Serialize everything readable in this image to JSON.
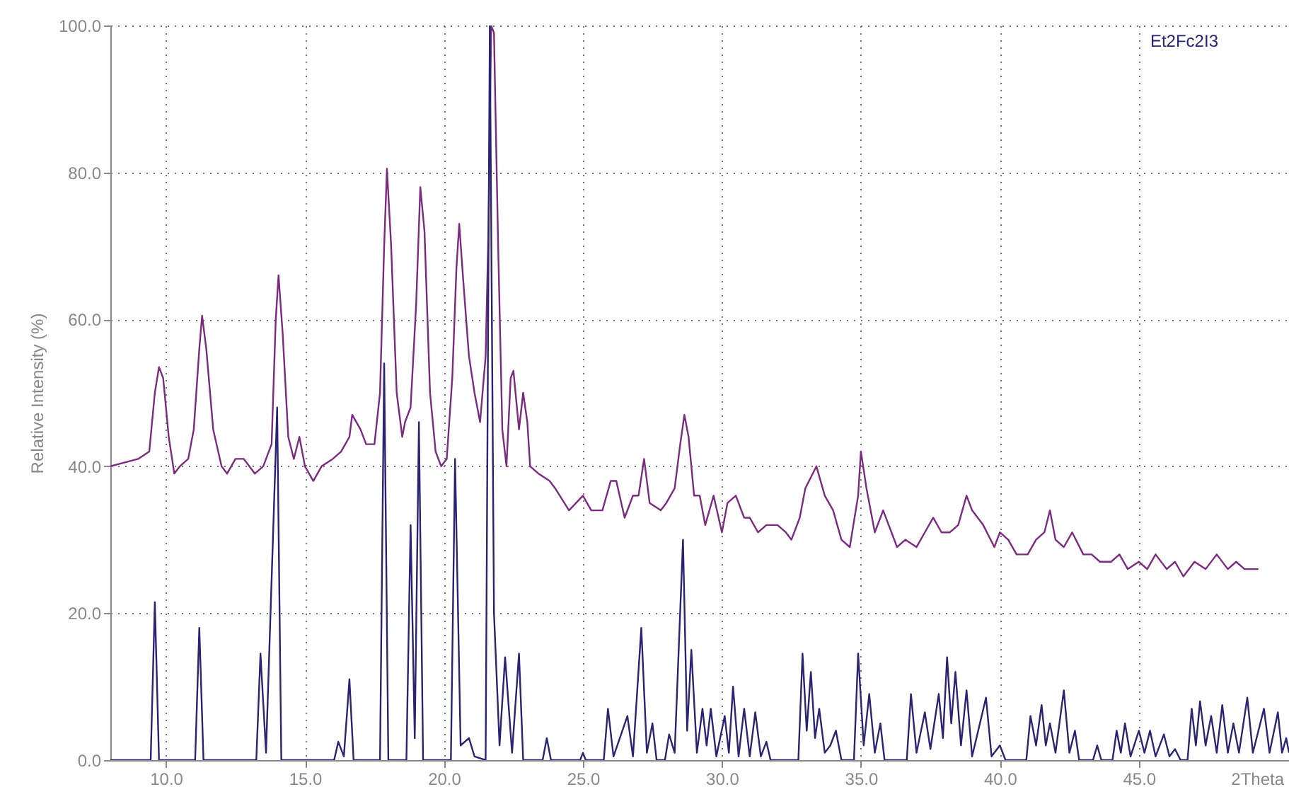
{
  "chart_data": {
    "type": "line",
    "xlabel": "2Theta",
    "ylabel": "Relative Intensity (%)",
    "annotations": [
      "Et2Fc2I3"
    ],
    "xlim": [
      8,
      50.4
    ],
    "ylim": [
      0,
      100
    ],
    "xticks": [
      {
        "value": 10,
        "label": "10.0"
      },
      {
        "value": 15,
        "label": "15.0"
      },
      {
        "value": 20,
        "label": "20.0"
      },
      {
        "value": 25,
        "label": "25.0"
      },
      {
        "value": 30,
        "label": "30.0"
      },
      {
        "value": 35,
        "label": "35.0"
      },
      {
        "value": 40,
        "label": "40.0"
      },
      {
        "value": 45,
        "label": "45.0"
      }
    ],
    "yticks": [
      {
        "value": 0,
        "label": "0.0"
      },
      {
        "value": 20,
        "label": "20.0"
      },
      {
        "value": 40,
        "label": "40.0"
      },
      {
        "value": 60,
        "label": "60.0"
      },
      {
        "value": 80,
        "label": "80.0"
      },
      {
        "value": 100,
        "label": "100.0"
      }
    ],
    "grid": true,
    "series": [
      {
        "color": "#7b2b80",
        "x": [
          8.0,
          8.5,
          9.0,
          9.4,
          9.6,
          9.75,
          9.9,
          10.1,
          10.3,
          10.5,
          10.8,
          11.0,
          11.2,
          11.3,
          11.45,
          11.7,
          12.0,
          12.2,
          12.5,
          12.8,
          13.2,
          13.5,
          13.8,
          13.95,
          14.05,
          14.2,
          14.4,
          14.6,
          14.8,
          15.0,
          15.3,
          15.6,
          16.0,
          16.3,
          16.6,
          16.7,
          17.0,
          17.2,
          17.5,
          17.7,
          17.85,
          17.95,
          18.1,
          18.3,
          18.5,
          18.6,
          18.8,
          19.0,
          19.15,
          19.3,
          19.5,
          19.7,
          19.9,
          20.1,
          20.3,
          20.45,
          20.55,
          20.7,
          20.9,
          21.1,
          21.3,
          21.5,
          21.6,
          21.7,
          21.8,
          21.95,
          22.1,
          22.25,
          22.4,
          22.5,
          22.7,
          22.85,
          23.0,
          23.1,
          23.4,
          23.8,
          24.0,
          24.5,
          25.0,
          25.3,
          25.7,
          26.0,
          26.2,
          26.5,
          26.8,
          27.0,
          27.2,
          27.4,
          27.8,
          28.0,
          28.3,
          28.5,
          28.65,
          28.8,
          29.0,
          29.2,
          29.4,
          29.7,
          30.0,
          30.2,
          30.5,
          30.8,
          31.0,
          31.3,
          31.6,
          32.0,
          32.3,
          32.5,
          32.8,
          33.0,
          33.4,
          33.7,
          34.0,
          34.3,
          34.6,
          34.9,
          35.0,
          35.2,
          35.5,
          35.8,
          36.0,
          36.3,
          36.6,
          37.0,
          37.3,
          37.6,
          37.9,
          38.2,
          38.5,
          38.8,
          39.0,
          39.4,
          39.8,
          40.0,
          40.3,
          40.6,
          41.0,
          41.3,
          41.6,
          41.8,
          42.0,
          42.3,
          42.6,
          43.0,
          43.3,
          43.6,
          44.0,
          44.3,
          44.6,
          45.0,
          45.3,
          45.6,
          46.0,
          46.3,
          46.6,
          47.0,
          47.4,
          47.8,
          48.2,
          48.5,
          48.8,
          49.3
        ],
        "values": [
          40,
          40.5,
          41,
          42,
          50,
          53.5,
          52,
          44,
          39,
          40,
          41,
          45,
          56,
          60.5,
          56,
          45,
          40,
          39,
          41,
          41,
          39,
          40,
          43,
          60,
          66,
          58,
          44,
          41,
          44,
          40,
          38,
          40,
          41,
          42,
          44,
          47,
          45,
          43,
          43,
          50,
          70,
          80.5,
          70,
          50,
          44,
          46,
          48,
          62,
          78,
          72,
          50,
          42,
          40,
          41,
          52,
          67,
          73,
          65,
          55,
          50,
          46,
          55,
          72,
          100,
          99,
          70,
          45,
          40,
          52,
          53,
          45,
          50,
          46,
          40,
          39,
          38,
          37,
          34,
          36,
          34,
          34,
          38,
          38,
          33,
          36,
          36,
          41,
          35,
          34,
          35,
          37,
          43,
          47,
          44,
          36,
          36,
          32,
          36,
          31,
          35,
          36,
          33,
          33,
          31,
          32,
          32,
          31,
          30,
          33,
          37,
          40,
          36,
          34,
          30,
          29,
          36,
          42,
          37,
          31,
          34,
          32,
          29,
          30,
          29,
          31,
          33,
          31,
          31,
          32,
          36,
          34,
          32,
          29,
          31,
          30,
          28,
          28,
          30,
          31,
          34,
          30,
          29,
          31,
          28,
          28,
          27,
          27,
          28,
          26,
          27,
          26,
          28,
          26,
          27,
          25,
          27,
          26,
          28,
          26,
          27,
          26,
          26
        ]
      },
      {
        "color": "#2a2473",
        "x": [
          8.0,
          9.45,
          9.6,
          9.75,
          11.05,
          11.2,
          11.35,
          13.25,
          13.4,
          13.6,
          14.0,
          14.15,
          16.05,
          16.2,
          16.4,
          16.6,
          16.75,
          17.7,
          17.85,
          18.0,
          18.65,
          18.8,
          18.95,
          19.1,
          19.25,
          20.25,
          20.4,
          20.6,
          20.9,
          21.1,
          21.5,
          21.65,
          21.8,
          22.0,
          22.2,
          22.45,
          22.7,
          22.85,
          23.55,
          23.7,
          23.85,
          24.9,
          25.0,
          25.1,
          25.75,
          25.9,
          26.1,
          26.6,
          26.8,
          27.1,
          27.3,
          27.5,
          27.65,
          27.95,
          28.1,
          28.3,
          28.6,
          28.75,
          28.9,
          29.1,
          29.3,
          29.45,
          29.6,
          29.8,
          30.1,
          30.25,
          30.4,
          30.6,
          30.8,
          31.0,
          31.2,
          31.4,
          31.6,
          31.75,
          32.75,
          32.9,
          33.05,
          33.2,
          33.35,
          33.5,
          33.7,
          33.9,
          34.1,
          34.3,
          34.75,
          34.9,
          35.1,
          35.3,
          35.5,
          35.7,
          35.85,
          36.65,
          36.8,
          37.0,
          37.3,
          37.5,
          37.8,
          37.95,
          38.1,
          38.25,
          38.4,
          38.6,
          38.8,
          39.0,
          39.5,
          39.7,
          40.0,
          40.2,
          40.95,
          41.1,
          41.3,
          41.5,
          41.65,
          41.8,
          42.0,
          42.3,
          42.5,
          42.7,
          42.85,
          43.35,
          43.5,
          43.65,
          44.05,
          44.2,
          44.35,
          44.5,
          44.7,
          45.0,
          45.2,
          45.4,
          45.6,
          45.9,
          46.1,
          46.3,
          46.5,
          46.75,
          46.9,
          47.05,
          47.2,
          47.4,
          47.6,
          47.8,
          48.0,
          48.2,
          48.4,
          48.6,
          48.9,
          49.1,
          49.5,
          49.7,
          50.0,
          50.15,
          50.3,
          50.4
        ],
        "values": [
          0,
          0,
          21.5,
          0,
          0,
          18,
          0,
          0,
          14.5,
          1,
          48,
          0,
          0,
          2.5,
          0.5,
          11,
          0,
          0,
          54,
          0,
          0,
          32,
          3,
          46,
          0,
          0,
          41,
          2,
          3,
          0.5,
          0,
          100,
          20,
          2,
          14,
          1,
          14.5,
          0,
          0,
          3,
          0,
          0,
          1,
          0,
          0,
          7,
          0.5,
          6,
          0.5,
          18,
          1,
          5,
          0,
          0,
          3.5,
          1,
          30,
          4,
          15,
          1,
          7,
          2,
          7,
          0.5,
          6,
          1,
          10,
          0.5,
          7,
          0.5,
          6.5,
          0.5,
          2.5,
          0,
          0,
          14.5,
          4,
          12,
          3,
          7,
          1,
          2,
          4,
          0,
          0,
          14.5,
          2,
          9,
          1,
          5,
          0,
          0,
          9,
          1,
          6.5,
          1.5,
          9,
          3,
          14,
          5,
          12,
          2,
          9.5,
          0.5,
          8.5,
          0.5,
          2,
          0,
          0,
          6,
          2,
          7.5,
          2,
          5,
          1,
          9.5,
          1,
          4,
          0,
          0,
          2,
          0,
          0,
          4,
          1,
          5,
          0.5,
          4,
          1,
          4,
          0.5,
          3.5,
          0.5,
          1.5,
          0,
          0,
          7,
          2,
          8,
          2,
          6,
          1,
          7.5,
          1,
          5,
          1,
          8.5,
          1,
          7,
          1,
          6.5,
          1,
          3,
          1
        ]
      }
    ]
  }
}
